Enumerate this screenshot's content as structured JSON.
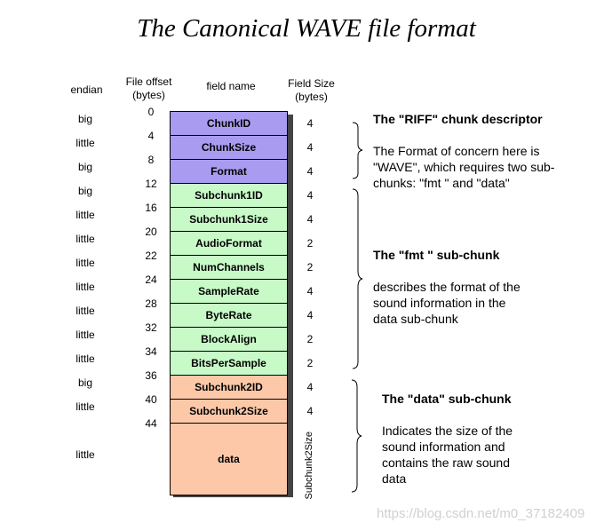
{
  "title": "The Canonical WAVE file format",
  "headers": {
    "endian": "endian",
    "offset": "File offset\n(bytes)",
    "field": "field name",
    "size": "Field Size\n(bytes)"
  },
  "colors": {
    "riff": "#a99cf0",
    "fmt": "#c8fac8",
    "data": "#fcc8a8"
  },
  "fields": [
    {
      "name": "ChunkID",
      "endian": "big",
      "offset": "0",
      "size": "4",
      "group": "riff"
    },
    {
      "name": "ChunkSize",
      "endian": "little",
      "offset": "4",
      "size": "4",
      "group": "riff"
    },
    {
      "name": "Format",
      "endian": "big",
      "offset": "8",
      "size": "4",
      "group": "riff"
    },
    {
      "name": "Subchunk1ID",
      "endian": "big",
      "offset": "12",
      "size": "4",
      "group": "fmt"
    },
    {
      "name": "Subchunk1Size",
      "endian": "little",
      "offset": "16",
      "size": "4",
      "group": "fmt"
    },
    {
      "name": "AudioFormat",
      "endian": "little",
      "offset": "20",
      "size": "2",
      "group": "fmt"
    },
    {
      "name": "NumChannels",
      "endian": "little",
      "offset": "22",
      "size": "2",
      "group": "fmt"
    },
    {
      "name": "SampleRate",
      "endian": "little",
      "offset": "24",
      "size": "4",
      "group": "fmt"
    },
    {
      "name": "ByteRate",
      "endian": "little",
      "offset": "28",
      "size": "4",
      "group": "fmt"
    },
    {
      "name": "BlockAlign",
      "endian": "little",
      "offset": "32",
      "size": "2",
      "group": "fmt"
    },
    {
      "name": "BitsPerSample",
      "endian": "little",
      "offset": "34",
      "size": "2",
      "group": "fmt"
    },
    {
      "name": "Subchunk2ID",
      "endian": "big",
      "offset": "36",
      "size": "4",
      "group": "data"
    },
    {
      "name": "Subchunk2Size",
      "endian": "little",
      "offset": "40",
      "size": "4",
      "group": "data"
    },
    {
      "name": "data",
      "endian": "little",
      "offset": "44",
      "size": "Subchunk2Size",
      "group": "data"
    }
  ],
  "groups": {
    "riff": {
      "heading": "The \"RIFF\" chunk descriptor",
      "text": "The Format of concern here is \"WAVE\", which requires two sub-chunks: \"fmt \" and \"data\""
    },
    "fmt": {
      "heading": "The \"fmt \" sub-chunk",
      "text": "describes the format of the sound information in the data sub-chunk"
    },
    "data": {
      "heading": "The \"data\" sub-chunk",
      "text": "Indicates the size of the sound information and contains the raw sound data"
    }
  },
  "watermark": "https://blog.csdn.net/m0_37182409"
}
